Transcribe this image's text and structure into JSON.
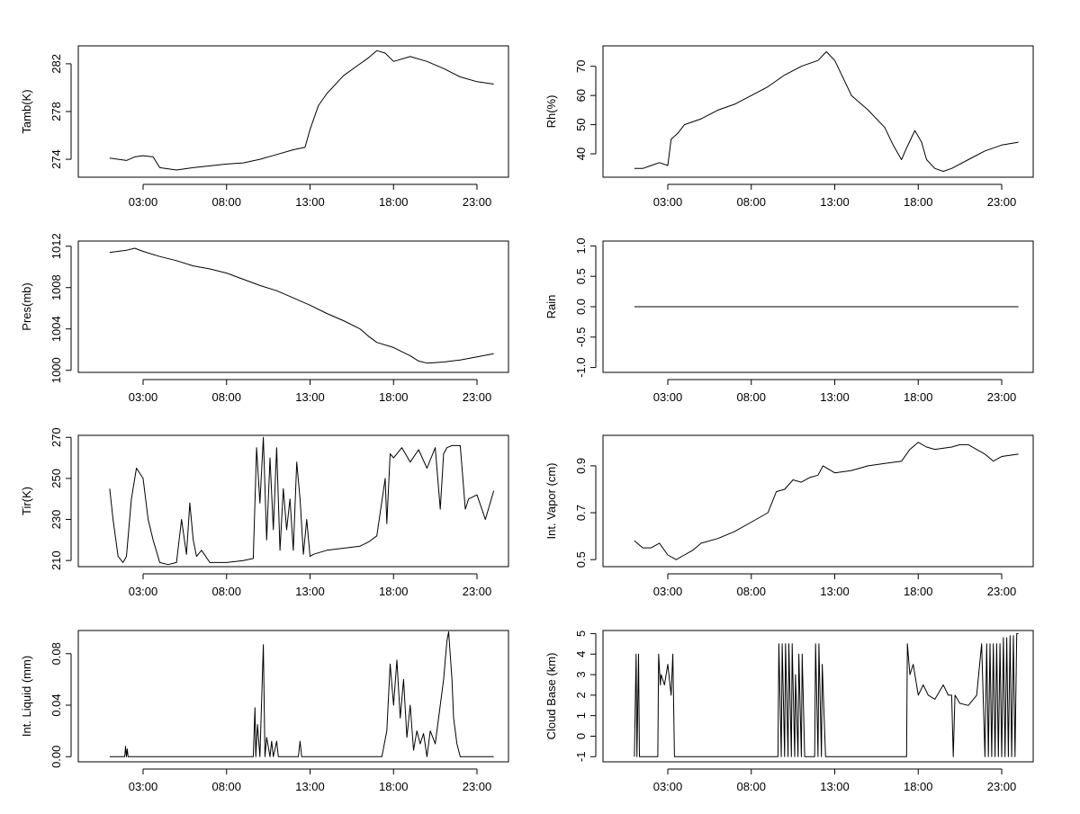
{
  "chart_data": [
    {
      "type": "line",
      "ylabel": "Tamb(K)",
      "xlabel": "",
      "x_unit": "hours",
      "x_range": [
        0,
        24
      ],
      "ylim": [
        272.5,
        283.5
      ],
      "x_ticks": [
        {
          "h": 3,
          "label": "03:00"
        },
        {
          "h": 8,
          "label": "08:00"
        },
        {
          "h": 13,
          "label": "13:00"
        },
        {
          "h": 18,
          "label": "18:00"
        },
        {
          "h": 23,
          "label": "23:00"
        }
      ],
      "y_ticks": [
        {
          "v": 274,
          "label": "274"
        },
        {
          "v": 278,
          "label": "278"
        },
        {
          "v": 282,
          "label": "282"
        }
      ],
      "series": [
        {
          "name": "Tamb",
          "x": [
            1,
            2,
            2.5,
            3,
            3.6,
            4,
            5,
            6,
            8,
            9,
            10,
            11,
            12,
            12.7,
            13,
            13.5,
            14,
            15,
            16,
            16.5,
            17,
            17.5,
            18,
            19,
            20,
            21,
            22,
            23,
            24
          ],
          "values": [
            274.1,
            273.9,
            274.2,
            274.3,
            274.2,
            273.3,
            273.1,
            273.3,
            273.6,
            273.7,
            274.0,
            274.4,
            274.8,
            275.0,
            276.5,
            278.5,
            279.5,
            281.0,
            282.0,
            282.5,
            283.1,
            282.9,
            282.2,
            282.6,
            282.2,
            281.6,
            280.9,
            280.5,
            280.3
          ]
        }
      ]
    },
    {
      "type": "line",
      "ylabel": "Rh(%)",
      "xlabel": "",
      "x_unit": "hours",
      "x_range": [
        0,
        24
      ],
      "ylim": [
        32,
        77
      ],
      "x_ticks": [
        {
          "h": 3,
          "label": "03:00"
        },
        {
          "h": 8,
          "label": "08:00"
        },
        {
          "h": 13,
          "label": "13:00"
        },
        {
          "h": 18,
          "label": "18:00"
        },
        {
          "h": 23,
          "label": "23:00"
        }
      ],
      "y_ticks": [
        {
          "v": 40,
          "label": "40"
        },
        {
          "v": 50,
          "label": "50"
        },
        {
          "v": 60,
          "label": "60"
        },
        {
          "v": 70,
          "label": "70"
        }
      ],
      "series": [
        {
          "name": "Rh",
          "x": [
            1,
            1.5,
            2,
            2.5,
            3,
            3.2,
            3.6,
            4,
            5,
            6,
            7,
            8,
            9,
            10,
            11,
            12,
            12.5,
            13,
            14,
            15,
            16,
            16.5,
            17,
            17.3,
            17.8,
            18.2,
            18.5,
            19,
            19.5,
            20,
            21,
            22,
            23,
            24
          ],
          "values": [
            35,
            35,
            36,
            37,
            36,
            45,
            47,
            50,
            52,
            55,
            57,
            60,
            63,
            67,
            70,
            72,
            75,
            72,
            60,
            55,
            49,
            43,
            38,
            42,
            48,
            44,
            38,
            35,
            34,
            35,
            38,
            41,
            43,
            44
          ]
        }
      ]
    },
    {
      "type": "line",
      "ylabel": "Pres(mb)",
      "xlabel": "",
      "x_unit": "hours",
      "x_range": [
        0,
        24
      ],
      "ylim": [
        999.8,
        1012.5
      ],
      "x_ticks": [
        {
          "h": 3,
          "label": "03:00"
        },
        {
          "h": 8,
          "label": "08:00"
        },
        {
          "h": 13,
          "label": "13:00"
        },
        {
          "h": 18,
          "label": "18:00"
        },
        {
          "h": 23,
          "label": "23:00"
        }
      ],
      "y_ticks": [
        {
          "v": 1000,
          "label": "1000"
        },
        {
          "v": 1004,
          "label": "1004"
        },
        {
          "v": 1008,
          "label": "1008"
        },
        {
          "v": 1012,
          "label": "1012"
        }
      ],
      "series": [
        {
          "name": "Pres",
          "x": [
            1,
            2,
            2.5,
            3,
            4,
            5,
            6,
            7,
            8,
            9,
            10,
            11,
            12,
            13,
            14,
            15,
            16,
            16.5,
            17,
            18,
            19,
            19.5,
            20,
            21,
            22,
            23,
            24
          ],
          "values": [
            1011.4,
            1011.6,
            1011.8,
            1011.5,
            1011.0,
            1010.6,
            1010.1,
            1009.8,
            1009.4,
            1008.8,
            1008.2,
            1007.7,
            1007.0,
            1006.3,
            1005.5,
            1004.8,
            1004.0,
            1003.3,
            1002.7,
            1002.2,
            1001.4,
            1000.9,
            1000.7,
            1000.8,
            1001.0,
            1001.3,
            1001.6
          ]
        }
      ]
    },
    {
      "type": "line",
      "ylabel": "Rain",
      "xlabel": "",
      "x_unit": "hours",
      "x_range": [
        0,
        24
      ],
      "ylim": [
        -1.08,
        1.08
      ],
      "x_ticks": [
        {
          "h": 3,
          "label": "03:00"
        },
        {
          "h": 8,
          "label": "08:00"
        },
        {
          "h": 13,
          "label": "13:00"
        },
        {
          "h": 18,
          "label": "18:00"
        },
        {
          "h": 23,
          "label": "23:00"
        }
      ],
      "y_ticks": [
        {
          "v": -1.0,
          "label": "-1.0"
        },
        {
          "v": -0.5,
          "label": "-0.5"
        },
        {
          "v": 0.0,
          "label": "0.0"
        },
        {
          "v": 0.5,
          "label": "0.5"
        },
        {
          "v": 1.0,
          "label": "1.0"
        }
      ],
      "series": [
        {
          "name": "Rain",
          "x": [
            1,
            24
          ],
          "values": [
            0,
            0
          ]
        }
      ]
    },
    {
      "type": "line",
      "ylabel": "Tir(K)",
      "xlabel": "",
      "x_unit": "hours",
      "x_range": [
        0,
        24
      ],
      "ylim": [
        207,
        271
      ],
      "x_ticks": [
        {
          "h": 3,
          "label": "03:00"
        },
        {
          "h": 8,
          "label": "08:00"
        },
        {
          "h": 13,
          "label": "13:00"
        },
        {
          "h": 18,
          "label": "18:00"
        },
        {
          "h": 23,
          "label": "23:00"
        }
      ],
      "y_ticks": [
        {
          "v": 210,
          "label": "210"
        },
        {
          "v": 230,
          "label": "230"
        },
        {
          "v": 250,
          "label": "250"
        },
        {
          "v": 270,
          "label": "270"
        }
      ],
      "series": [
        {
          "name": "Tir",
          "x": [
            1,
            1.2,
            1.5,
            1.8,
            2,
            2.3,
            2.6,
            3,
            3.3,
            3.6,
            4,
            4.5,
            5,
            5.3,
            5.6,
            5.8,
            6,
            6.2,
            6.5,
            7,
            8,
            9,
            9.6,
            9.8,
            10,
            10.2,
            10.4,
            10.6,
            10.8,
            11,
            11.2,
            11.4,
            11.6,
            11.8,
            12,
            12.2,
            12.4,
            12.6,
            12.8,
            13,
            13.2,
            14,
            15,
            16,
            16.5,
            17,
            17.5,
            17.6,
            17.8,
            18,
            18.5,
            19,
            19.5,
            20,
            20.5,
            20.8,
            21,
            21.2,
            21.5,
            22,
            22.3,
            22.5,
            23,
            23.5,
            24
          ],
          "values": [
            245,
            230,
            212,
            209,
            212,
            240,
            255,
            250,
            230,
            220,
            209,
            208,
            209,
            230,
            213,
            238,
            220,
            212,
            215,
            209,
            209,
            210,
            211,
            265,
            238,
            270,
            220,
            260,
            225,
            265,
            215,
            245,
            225,
            240,
            215,
            258,
            240,
            213,
            230,
            212,
            213,
            215,
            216,
            217,
            219,
            222,
            250,
            228,
            262,
            260,
            265,
            258,
            264,
            255,
            265,
            235,
            262,
            265,
            266,
            266,
            235,
            240,
            242,
            230,
            244
          ]
        }
      ]
    },
    {
      "type": "line",
      "ylabel": "Int. Vapor (cm)",
      "xlabel": "",
      "x_unit": "hours",
      "x_range": [
        0,
        24
      ],
      "ylim": [
        0.47,
        1.03
      ],
      "x_ticks": [
        {
          "h": 3,
          "label": "03:00"
        },
        {
          "h": 8,
          "label": "08:00"
        },
        {
          "h": 13,
          "label": "13:00"
        },
        {
          "h": 18,
          "label": "18:00"
        },
        {
          "h": 23,
          "label": "23:00"
        }
      ],
      "y_ticks": [
        {
          "v": 0.5,
          "label": "0.5"
        },
        {
          "v": 0.7,
          "label": "0.7"
        },
        {
          "v": 0.9,
          "label": "0.9"
        }
      ],
      "series": [
        {
          "name": "Int. Vapor",
          "x": [
            1,
            1.5,
            2,
            2.5,
            3,
            3.5,
            4,
            4.5,
            5,
            6,
            7,
            8,
            9,
            9.5,
            10,
            10.5,
            11,
            11.5,
            12,
            12.3,
            13,
            14,
            15,
            16,
            17,
            17.5,
            18,
            18.5,
            19,
            20,
            20.5,
            21,
            22,
            22.5,
            23,
            24
          ],
          "values": [
            0.58,
            0.55,
            0.55,
            0.57,
            0.52,
            0.5,
            0.52,
            0.54,
            0.57,
            0.59,
            0.62,
            0.66,
            0.7,
            0.79,
            0.8,
            0.84,
            0.83,
            0.85,
            0.86,
            0.9,
            0.87,
            0.88,
            0.9,
            0.91,
            0.92,
            0.97,
            1.0,
            0.98,
            0.97,
            0.98,
            0.99,
            0.99,
            0.95,
            0.92,
            0.94,
            0.95
          ]
        }
      ]
    },
    {
      "type": "line",
      "ylabel": "Int. Liquid (mm)",
      "xlabel": "",
      "x_unit": "hours",
      "x_range": [
        0,
        24
      ],
      "ylim": [
        -0.004,
        0.098
      ],
      "x_ticks": [
        {
          "h": 3,
          "label": "03:00"
        },
        {
          "h": 8,
          "label": "08:00"
        },
        {
          "h": 13,
          "label": "13:00"
        },
        {
          "h": 18,
          "label": "18:00"
        },
        {
          "h": 23,
          "label": "23:00"
        }
      ],
      "y_ticks": [
        {
          "v": 0.0,
          "label": "0.00"
        },
        {
          "v": 0.04,
          "label": "0.04"
        },
        {
          "v": 0.08,
          "label": "0.08"
        }
      ],
      "series": [
        {
          "name": "Int. Liquid",
          "x": [
            1,
            1.9,
            1.95,
            2.0,
            2.05,
            2.1,
            9.6,
            9.7,
            9.75,
            9.85,
            10.0,
            10.2,
            10.3,
            10.4,
            10.6,
            10.7,
            10.8,
            11.0,
            11.1,
            11.2,
            12.3,
            12.4,
            12.5,
            17.3,
            17.6,
            17.8,
            18.0,
            18.2,
            18.4,
            18.6,
            18.8,
            19.0,
            19.2,
            19.4,
            19.6,
            19.8,
            20.0,
            20.2,
            20.5,
            20.8,
            21.0,
            21.2,
            21.3,
            21.5,
            21.6,
            21.8,
            22.0,
            24
          ],
          "values": [
            0,
            0,
            0.008,
            0,
            0.006,
            0,
            0,
            0.038,
            0,
            0.025,
            0,
            0.087,
            0,
            0.015,
            0,
            0.012,
            0,
            0.012,
            0,
            0,
            0,
            0.012,
            0,
            0,
            0.02,
            0.072,
            0.04,
            0.075,
            0.03,
            0.06,
            0.015,
            0.04,
            0.005,
            0.02,
            0.01,
            0.018,
            0.0,
            0.02,
            0.01,
            0.04,
            0.06,
            0.09,
            0.097,
            0.06,
            0.03,
            0.01,
            0.0,
            0
          ]
        }
      ]
    },
    {
      "type": "line",
      "ylabel": "Cloud Base (km)",
      "xlabel": "",
      "x_unit": "hours",
      "x_range": [
        0,
        24
      ],
      "ylim": [
        -1.25,
        5.15
      ],
      "x_ticks": [
        {
          "h": 3,
          "label": "03:00"
        },
        {
          "h": 8,
          "label": "08:00"
        },
        {
          "h": 13,
          "label": "13:00"
        },
        {
          "h": 18,
          "label": "18:00"
        },
        {
          "h": 23,
          "label": "23:00"
        }
      ],
      "y_ticks": [
        {
          "v": -1,
          "label": "-1"
        },
        {
          "v": 0,
          "label": "0"
        },
        {
          "v": 1,
          "label": "1"
        },
        {
          "v": 2,
          "label": "2"
        },
        {
          "v": 3,
          "label": "3"
        },
        {
          "v": 4,
          "label": "4"
        },
        {
          "v": 5,
          "label": "5"
        }
      ],
      "series": [
        {
          "name": "Cloud Base",
          "x": [
            1,
            1.1,
            1.15,
            1.25,
            1.3,
            1.35,
            2.4,
            2.45,
            2.55,
            2.6,
            2.8,
            3.0,
            3.2,
            3.3,
            3.4,
            3.45,
            9.6,
            9.65,
            9.8,
            9.85,
            10.0,
            10.05,
            10.2,
            10.25,
            10.4,
            10.45,
            10.6,
            10.65,
            10.8,
            10.85,
            11.0,
            11.05,
            11.2,
            11.25,
            11.5,
            11.55,
            11.8,
            11.85,
            12.0,
            12.05,
            12.2,
            12.25,
            12.45,
            17.3,
            17.35,
            17.5,
            17.7,
            18.0,
            18.3,
            18.6,
            19.0,
            19.5,
            19.8,
            20.0,
            20.1,
            20.2,
            20.5,
            21.0,
            21.5,
            21.8,
            22.0,
            22.1,
            22.2,
            22.3,
            22.4,
            22.5,
            22.6,
            22.7,
            22.8,
            22.9,
            23.0,
            23.1,
            23.2,
            23.3,
            23.4,
            23.5,
            23.6,
            23.7,
            23.8,
            23.9,
            24
          ],
          "values": [
            -1,
            4,
            -1,
            4,
            -1,
            -1,
            -1,
            4,
            2.5,
            3,
            2.5,
            3.5,
            2,
            4,
            -1,
            -1,
            -1,
            4.5,
            -1,
            4.5,
            -1,
            4.5,
            -1,
            4.5,
            -1,
            4.5,
            -1,
            3,
            -1,
            4,
            -1,
            4,
            -1,
            -1,
            -1,
            -1,
            -1,
            4.5,
            -1,
            4.5,
            -1,
            3.5,
            -1,
            -1,
            4.5,
            3,
            3.5,
            2,
            2.5,
            2,
            1.8,
            2.5,
            2,
            2,
            -1,
            2,
            1.6,
            1.5,
            2,
            4.5,
            -1,
            4.5,
            -1,
            4.5,
            -1,
            4.5,
            -1,
            4.5,
            -1,
            4.5,
            -1,
            4.8,
            -1,
            4.8,
            -1,
            4.9,
            -1,
            4.9,
            -1,
            5,
            5
          ]
        }
      ]
    }
  ]
}
